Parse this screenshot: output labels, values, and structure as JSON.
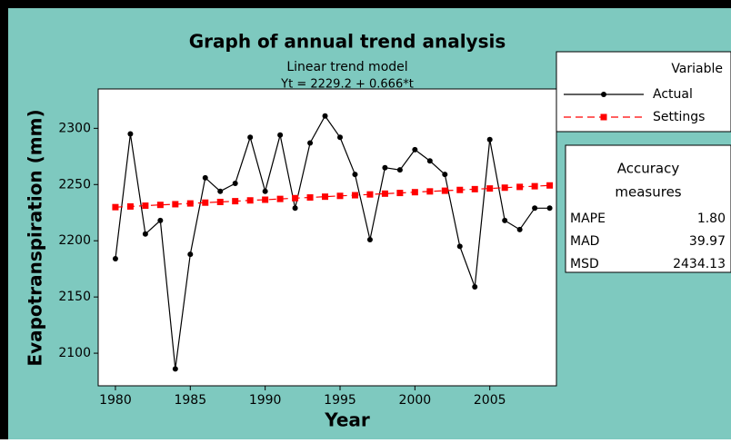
{
  "chart_data": {
    "type": "line",
    "title": "Graph of annual trend analysis",
    "subtitle": "Linear trend model",
    "equation": "Yt = 2229.2 + 0.666*t",
    "x_label": "Year",
    "y_label": "Evapotranspiration (mm)",
    "x": [
      1980,
      1981,
      1982,
      1983,
      1984,
      1985,
      1986,
      1987,
      1988,
      1989,
      1990,
      1991,
      1992,
      1993,
      1994,
      1995,
      1996,
      1997,
      1998,
      1999,
      2000,
      2001,
      2002,
      2003,
      2004,
      2005,
      2006,
      2007,
      2008,
      2009
    ],
    "series": [
      {
        "name": "Actual",
        "color": "#000000",
        "marker": "circle",
        "dashed": false,
        "values": [
          2184,
          2295,
          2206,
          2218,
          2086,
          2188,
          2256,
          2244,
          2251,
          2292,
          2244,
          2294,
          2229,
          2287,
          2311,
          2292,
          2259,
          2201,
          2265,
          2263,
          2281,
          2271,
          2259,
          2195,
          2159,
          2290,
          2218,
          2210,
          2229,
          2229
        ]
      },
      {
        "name": "Settings",
        "color": "#ff0000",
        "marker": "square",
        "dashed": true,
        "values": [
          2229.9,
          2230.5,
          2231.2,
          2231.9,
          2232.5,
          2233.2,
          2233.9,
          2234.5,
          2235.2,
          2235.9,
          2236.5,
          2237.2,
          2237.9,
          2238.5,
          2239.2,
          2239.9,
          2240.5,
          2241.2,
          2241.9,
          2242.5,
          2243.2,
          2243.9,
          2244.5,
          2245.2,
          2245.9,
          2246.5,
          2247.2,
          2247.9,
          2248.5,
          2249.2
        ]
      }
    ],
    "xlim": [
      1978.85,
      2009.45
    ],
    "ylim": [
      2071,
      2335
    ],
    "xticks": [
      1980,
      1985,
      1990,
      1995,
      2000,
      2005
    ],
    "yticks": [
      2100,
      2150,
      2200,
      2250,
      2300
    ],
    "legend_title": "Variable",
    "accuracy": {
      "title": "Accuracy measures",
      "rows": [
        [
          "MAPE",
          "1.80"
        ],
        [
          "MAD",
          "39.97"
        ],
        [
          "MSD",
          "2434.13"
        ]
      ]
    }
  }
}
